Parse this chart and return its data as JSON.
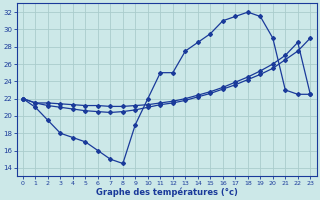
{
  "xlabel": "Graphe des températures (°c)",
  "bg_color": "#cce8e8",
  "grid_color": "#aacccc",
  "line_color": "#1a3a9a",
  "xlim": [
    -0.5,
    23.5
  ],
  "ylim": [
    13,
    33
  ],
  "xticks": [
    0,
    1,
    2,
    3,
    4,
    5,
    6,
    7,
    8,
    9,
    10,
    11,
    12,
    13,
    14,
    15,
    16,
    17,
    18,
    19,
    20,
    21,
    22,
    23
  ],
  "yticks": [
    14,
    16,
    18,
    20,
    22,
    24,
    26,
    28,
    30,
    32
  ],
  "line_max_x": [
    0,
    1,
    2,
    3,
    4,
    5,
    6,
    7,
    8,
    9,
    10,
    11,
    12,
    13,
    14,
    15,
    16,
    17,
    18,
    19,
    20,
    21,
    22,
    23
  ],
  "line_max_y": [
    22,
    21,
    19.5,
    18,
    17.5,
    17,
    16,
    15,
    14.5,
    19,
    22,
    25,
    25,
    27.5,
    28.5,
    29.5,
    31,
    31.5,
    32,
    31.5,
    29,
    23,
    22.5,
    22.5
  ],
  "line_mid_x": [
    0,
    1,
    2,
    3,
    4,
    5,
    6,
    7,
    8,
    9,
    10,
    11,
    12,
    13,
    14,
    15,
    16,
    17,
    18,
    19,
    20,
    21,
    22,
    23
  ],
  "line_mid_y": [
    22,
    21.5,
    21.2,
    21.0,
    20.8,
    20.6,
    20.5,
    20.4,
    20.5,
    20.7,
    21.0,
    21.3,
    21.5,
    21.8,
    22.2,
    22.6,
    23.1,
    23.6,
    24.2,
    24.8,
    25.5,
    26.5,
    27.5,
    29.0
  ],
  "line_diag_x": [
    0,
    1,
    2,
    3,
    4,
    5,
    6,
    7,
    8,
    9,
    10,
    11,
    12,
    13,
    14,
    15,
    16,
    17,
    18,
    19,
    20,
    21,
    22,
    23
  ],
  "line_diag_y": [
    22,
    21.5,
    21.5,
    21.4,
    21.3,
    21.2,
    21.2,
    21.1,
    21.1,
    21.2,
    21.3,
    21.5,
    21.7,
    22.0,
    22.4,
    22.8,
    23.3,
    23.9,
    24.5,
    25.2,
    26.0,
    27.0,
    28.5,
    22.5
  ]
}
